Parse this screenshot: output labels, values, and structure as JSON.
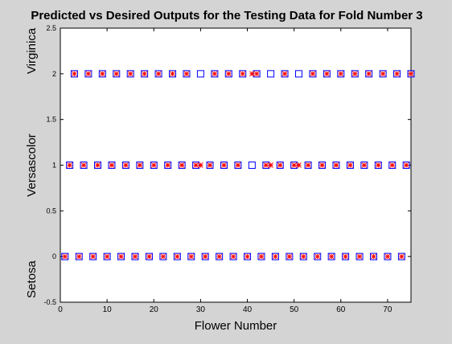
{
  "chart_data": {
    "type": "scatter",
    "title": "Predicted vs Desired Outputs for the Testing Data for Fold Number 3",
    "xlabel": "Flower Number",
    "xlim": [
      0,
      75
    ],
    "ylim": [
      -0.5,
      2.5
    ],
    "x_ticks": [
      0,
      10,
      20,
      30,
      40,
      50,
      60,
      70
    ],
    "y_ticks": [
      -0.5,
      0,
      0.5,
      1,
      1.5,
      2,
      2.5
    ],
    "y_tick_labels": [
      "-0.5",
      "0",
      "0.5",
      "1",
      "1.5",
      "2",
      "2.5"
    ],
    "y_class_labels": [
      {
        "text": "Setosa",
        "value": -0.25
      },
      {
        "text": "Versascolor",
        "value": 1.0
      },
      {
        "text": "Virginica",
        "value": 2.25
      }
    ],
    "grid": false,
    "legend": "none",
    "series": [
      {
        "marker": "square",
        "color": "#0000ff",
        "points": [
          [
            1,
            0
          ],
          [
            4,
            0
          ],
          [
            7,
            0
          ],
          [
            10,
            0
          ],
          [
            13,
            0
          ],
          [
            16,
            0
          ],
          [
            19,
            0
          ],
          [
            22,
            0
          ],
          [
            25,
            0
          ],
          [
            28,
            0
          ],
          [
            31,
            0
          ],
          [
            34,
            0
          ],
          [
            37,
            0
          ],
          [
            40,
            0
          ],
          [
            43,
            0
          ],
          [
            46,
            0
          ],
          [
            49,
            0
          ],
          [
            52,
            0
          ],
          [
            55,
            0
          ],
          [
            58,
            0
          ],
          [
            61,
            0
          ],
          [
            64,
            0
          ],
          [
            67,
            0
          ],
          [
            70,
            0
          ],
          [
            73,
            0
          ],
          [
            2,
            1
          ],
          [
            5,
            1
          ],
          [
            8,
            1
          ],
          [
            11,
            1
          ],
          [
            14,
            1
          ],
          [
            17,
            1
          ],
          [
            20,
            1
          ],
          [
            23,
            1
          ],
          [
            26,
            1
          ],
          [
            29,
            1
          ],
          [
            32,
            1
          ],
          [
            35,
            1
          ],
          [
            38,
            1
          ],
          [
            41,
            1
          ],
          [
            44,
            1
          ],
          [
            47,
            1
          ],
          [
            50,
            1
          ],
          [
            53,
            1
          ],
          [
            56,
            1
          ],
          [
            59,
            1
          ],
          [
            62,
            1
          ],
          [
            65,
            1
          ],
          [
            68,
            1
          ],
          [
            71,
            1
          ],
          [
            74,
            1
          ],
          [
            3,
            2
          ],
          [
            6,
            2
          ],
          [
            9,
            2
          ],
          [
            12,
            2
          ],
          [
            15,
            2
          ],
          [
            18,
            2
          ],
          [
            21,
            2
          ],
          [
            24,
            2
          ],
          [
            27,
            2
          ],
          [
            30,
            2
          ],
          [
            33,
            2
          ],
          [
            36,
            2
          ],
          [
            39,
            2
          ],
          [
            42,
            2
          ],
          [
            45,
            2
          ],
          [
            48,
            2
          ],
          [
            51,
            2
          ],
          [
            54,
            2
          ],
          [
            57,
            2
          ],
          [
            60,
            2
          ],
          [
            63,
            2
          ],
          [
            66,
            2
          ],
          [
            69,
            2
          ],
          [
            72,
            2
          ],
          [
            75,
            2
          ]
        ]
      },
      {
        "marker": "asterisk",
        "color": "#ff0000",
        "points": [
          [
            1,
            0
          ],
          [
            4,
            0
          ],
          [
            7,
            0
          ],
          [
            10,
            0
          ],
          [
            13,
            0
          ],
          [
            16,
            0
          ],
          [
            19,
            0
          ],
          [
            22,
            0
          ],
          [
            25,
            0
          ],
          [
            28,
            0
          ],
          [
            31,
            0
          ],
          [
            34,
            0
          ],
          [
            37,
            0
          ],
          [
            40,
            0
          ],
          [
            43,
            0
          ],
          [
            46,
            0
          ],
          [
            49,
            0
          ],
          [
            52,
            0
          ],
          [
            55,
            0
          ],
          [
            58,
            0
          ],
          [
            61,
            0
          ],
          [
            64,
            0
          ],
          [
            67,
            0
          ],
          [
            70,
            0
          ],
          [
            73,
            0
          ],
          [
            2,
            1
          ],
          [
            5,
            1
          ],
          [
            8,
            1
          ],
          [
            11,
            1
          ],
          [
            14,
            1
          ],
          [
            17,
            1
          ],
          [
            20,
            1
          ],
          [
            23,
            1
          ],
          [
            26,
            1
          ],
          [
            29,
            1
          ],
          [
            30,
            1
          ],
          [
            32,
            1
          ],
          [
            35,
            1
          ],
          [
            38,
            1
          ],
          [
            42,
            2
          ],
          [
            44,
            1
          ],
          [
            45,
            1
          ],
          [
            47,
            1
          ],
          [
            50,
            1
          ],
          [
            51,
            1
          ],
          [
            53,
            1
          ],
          [
            56,
            1
          ],
          [
            59,
            1
          ],
          [
            62,
            1
          ],
          [
            65,
            1
          ],
          [
            68,
            1
          ],
          [
            71,
            1
          ],
          [
            74,
            1
          ],
          [
            3,
            2
          ],
          [
            6,
            2
          ],
          [
            9,
            2
          ],
          [
            12,
            2
          ],
          [
            15,
            2
          ],
          [
            18,
            2
          ],
          [
            21,
            2
          ],
          [
            24,
            2
          ],
          [
            27,
            2
          ],
          [
            33,
            2
          ],
          [
            36,
            2
          ],
          [
            39,
            2
          ],
          [
            41,
            2
          ],
          [
            48,
            2
          ],
          [
            54,
            2
          ],
          [
            57,
            2
          ],
          [
            60,
            2
          ],
          [
            63,
            2
          ],
          [
            66,
            2
          ],
          [
            69,
            2
          ],
          [
            72,
            2
          ],
          [
            75,
            2
          ]
        ]
      }
    ]
  }
}
